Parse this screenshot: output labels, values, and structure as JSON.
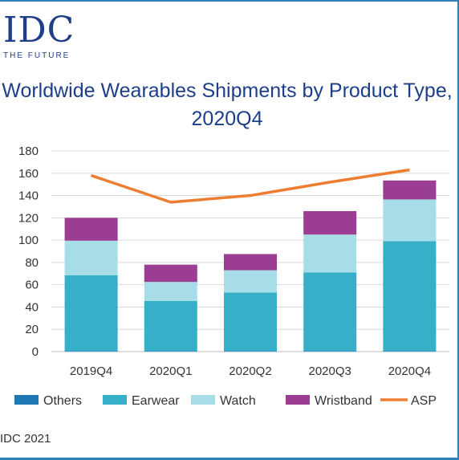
{
  "brand": {
    "logo": "IDC",
    "tagline": "THE FUTURE"
  },
  "source": "IDC 2021",
  "colors": {
    "others": "#1f77b4",
    "earwear": "#36b0c9",
    "watch": "#a6dde6",
    "wristband": "#9b3d93",
    "asp": "#ed7d31",
    "grid": "#d9d9d9"
  },
  "chart_data": {
    "type": "bar",
    "stacked": true,
    "title": "Worldwide Wearables Shipments by Product Type, 2020Q4",
    "categories": [
      "2019Q4",
      "2020Q1",
      "2020Q2",
      "2020Q3",
      "2020Q4"
    ],
    "ylim": [
      0,
      180
    ],
    "yticks": [
      0,
      20,
      40,
      60,
      80,
      100,
      120,
      140,
      160,
      180
    ],
    "grid": true,
    "legend_position": "bottom",
    "series": [
      {
        "name": "Others",
        "type": "bar",
        "color": "#1f77b4",
        "values": [
          0.5,
          0.5,
          0.5,
          0.5,
          0.5
        ]
      },
      {
        "name": "Earwear",
        "type": "bar",
        "color": "#36b0c9",
        "values": [
          68,
          45,
          52.5,
          70.5,
          98.5
        ]
      },
      {
        "name": "Watch",
        "type": "bar",
        "color": "#a6dde6",
        "values": [
          31,
          17,
          20,
          34,
          37.5
        ]
      },
      {
        "name": "Wristband",
        "type": "bar",
        "color": "#9b3d93",
        "values": [
          20.5,
          15.5,
          14.5,
          21,
          17
        ]
      },
      {
        "name": "ASP",
        "type": "line",
        "color": "#ed7d31",
        "values": [
          158,
          134,
          140,
          152,
          163
        ]
      }
    ]
  }
}
